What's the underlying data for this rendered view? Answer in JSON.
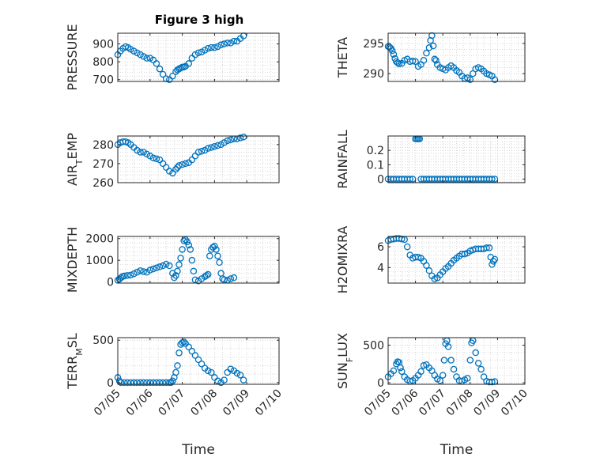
{
  "figure_title": "Figure 3 high",
  "colors": {
    "marker": "#0072BD",
    "axis": "#262626",
    "grid": "#c8c8c8"
  },
  "chart_data": [
    {
      "type": "scatter",
      "title": "Figure 3 high",
      "xlabel": "",
      "ylabel": "PRESSURE",
      "ylim": [
        690,
        960
      ],
      "yticks": [
        700,
        800,
        900
      ],
      "ytick_labels": [
        "700",
        "800",
        "900"
      ],
      "xticks": [
        0,
        1,
        2,
        3,
        4,
        5
      ],
      "xtick_labels": [
        "",
        "",
        "",
        "",
        "",
        ""
      ],
      "grid": true,
      "x": [
        0.0,
        0.08,
        0.16,
        0.24,
        0.32,
        0.4,
        0.5,
        0.6,
        0.7,
        0.8,
        0.9,
        1.0,
        1.1,
        1.2,
        1.3,
        1.4,
        1.5,
        1.6,
        1.7,
        1.8,
        1.85,
        1.9,
        1.95,
        2.0,
        2.05,
        2.1,
        2.2,
        2.3,
        2.4,
        2.5,
        2.6,
        2.7,
        2.8,
        2.9,
        3.0,
        3.1,
        3.2,
        3.3,
        3.4,
        3.5,
        3.6,
        3.7,
        3.8,
        3.9
      ],
      "y": [
        840,
        860,
        875,
        885,
        880,
        870,
        860,
        850,
        840,
        830,
        820,
        820,
        810,
        790,
        760,
        730,
        705,
        700,
        720,
        745,
        755,
        760,
        765,
        770,
        770,
        775,
        790,
        820,
        840,
        850,
        855,
        865,
        875,
        880,
        880,
        885,
        895,
        900,
        905,
        905,
        915,
        915,
        930,
        945
      ]
    },
    {
      "type": "scatter",
      "xlabel": "",
      "ylabel": "THETA",
      "ylim": [
        288.7,
        296.7
      ],
      "yticks": [
        290,
        295
      ],
      "ytick_labels": [
        "290",
        "295"
      ],
      "xticks": [
        0,
        1,
        2,
        3,
        4,
        5
      ],
      "xtick_labels": [
        "",
        "",
        "",
        "",
        "",
        ""
      ],
      "grid": true,
      "x": [
        0.0,
        0.05,
        0.1,
        0.15,
        0.2,
        0.25,
        0.3,
        0.35,
        0.4,
        0.5,
        0.6,
        0.7,
        0.8,
        0.9,
        1.0,
        1.1,
        1.2,
        1.3,
        1.4,
        1.5,
        1.55,
        1.6,
        1.65,
        1.7,
        1.75,
        1.8,
        1.9,
        2.0,
        2.1,
        2.2,
        2.3,
        2.4,
        2.5,
        2.6,
        2.7,
        2.8,
        2.9,
        3.0,
        3.1,
        3.2,
        3.3,
        3.4,
        3.5,
        3.6,
        3.7,
        3.8,
        3.9
      ],
      "y": [
        294.5,
        294.4,
        294.2,
        293.8,
        293.2,
        292.5,
        292.0,
        291.8,
        291.6,
        291.7,
        292.2,
        292.4,
        292.0,
        292.1,
        292.0,
        291.2,
        291.5,
        292.2,
        293.4,
        294.3,
        295.5,
        296.3,
        294.6,
        292.4,
        292.2,
        291.5,
        291.0,
        290.8,
        290.6,
        291.0,
        291.3,
        291.0,
        290.5,
        290.2,
        289.6,
        289.2,
        289.3,
        289.0,
        290.0,
        290.8,
        291.0,
        290.8,
        290.4,
        290.0,
        289.8,
        289.6,
        289.0
      ]
    },
    {
      "type": "scatter",
      "xlabel": "",
      "ylabel": "AIR_TEMP",
      "ylim": [
        260,
        284.5
      ],
      "yticks": [
        260,
        270,
        280
      ],
      "ytick_labels": [
        "260",
        "270",
        "280"
      ],
      "xticks": [
        0,
        1,
        2,
        3,
        4,
        5
      ],
      "xtick_labels": [
        "",
        "",
        "",
        "",
        "",
        ""
      ],
      "grid": true,
      "x": [
        0.0,
        0.08,
        0.16,
        0.24,
        0.32,
        0.4,
        0.5,
        0.6,
        0.7,
        0.8,
        0.9,
        1.0,
        1.1,
        1.2,
        1.3,
        1.4,
        1.5,
        1.6,
        1.7,
        1.8,
        1.85,
        1.9,
        2.0,
        2.1,
        2.2,
        2.3,
        2.4,
        2.5,
        2.6,
        2.7,
        2.8,
        2.9,
        3.0,
        3.1,
        3.2,
        3.3,
        3.4,
        3.5,
        3.6,
        3.7,
        3.8,
        3.9
      ],
      "y": [
        280,
        281,
        281.5,
        281.5,
        281,
        280,
        278.5,
        277,
        276,
        276,
        275,
        274,
        273,
        272.5,
        272,
        270,
        268,
        266,
        265,
        267,
        268,
        269,
        269.5,
        270,
        270.5,
        272,
        274,
        276,
        276.5,
        277,
        278,
        278.5,
        279,
        279.5,
        280,
        281,
        282,
        282.5,
        283,
        283,
        283.5,
        284
      ]
    },
    {
      "type": "scatter",
      "xlabel": "",
      "ylabel": "RAINFALL",
      "ylim": [
        -0.025,
        0.3
      ],
      "yticks": [
        0,
        0.1,
        0.2
      ],
      "ytick_labels": [
        "0",
        "0.1",
        "0.2"
      ],
      "xticks": [
        0,
        1,
        2,
        3,
        4,
        5
      ],
      "xtick_labels": [
        "",
        "",
        "",
        "",
        "",
        ""
      ],
      "grid": true,
      "x": [
        0.0,
        0.1,
        0.2,
        0.3,
        0.4,
        0.5,
        0.6,
        0.7,
        0.8,
        0.9,
        1.0,
        1.05,
        1.1,
        1.15,
        1.2,
        1.3,
        1.4,
        1.5,
        1.6,
        1.7,
        1.8,
        1.9,
        2.0,
        2.1,
        2.2,
        2.3,
        2.4,
        2.5,
        2.6,
        2.7,
        2.8,
        2.9,
        3.0,
        3.1,
        3.2,
        3.3,
        3.4,
        3.5,
        3.6,
        3.7,
        3.8,
        3.9
      ],
      "y": [
        0,
        0,
        0,
        0,
        0,
        0,
        0,
        0,
        0,
        0,
        0.28,
        0.28,
        0.28,
        0.28,
        0,
        0,
        0,
        0,
        0,
        0,
        0,
        0,
        0,
        0,
        0,
        0,
        0,
        0,
        0,
        0,
        0,
        0,
        0,
        0,
        0,
        0,
        0,
        0,
        0,
        0,
        0,
        0
      ]
    },
    {
      "type": "scatter",
      "xlabel": "",
      "ylabel": "MIXDEPTH",
      "ylim": [
        -50,
        2100
      ],
      "yticks": [
        0,
        1000,
        2000
      ],
      "ytick_labels": [
        "0",
        "1000",
        "2000"
      ],
      "xticks": [
        0,
        1,
        2,
        3,
        4,
        5
      ],
      "xtick_labels": [
        "",
        "",
        "",
        "",
        "",
        ""
      ],
      "grid": true,
      "x": [
        0.0,
        0.05,
        0.1,
        0.15,
        0.2,
        0.3,
        0.4,
        0.5,
        0.6,
        0.7,
        0.8,
        0.9,
        1.0,
        1.1,
        1.2,
        1.3,
        1.4,
        1.5,
        1.6,
        1.7,
        1.75,
        1.8,
        1.85,
        1.9,
        1.95,
        2.0,
        2.05,
        2.1,
        2.15,
        2.2,
        2.25,
        2.3,
        2.35,
        2.4,
        2.5,
        2.6,
        2.7,
        2.75,
        2.8,
        2.85,
        2.9,
        2.95,
        3.0,
        3.05,
        3.1,
        3.15,
        3.2,
        3.25,
        3.3,
        3.4,
        3.5,
        3.6
      ],
      "y": [
        80,
        130,
        200,
        250,
        280,
        300,
        320,
        380,
        450,
        520,
        480,
        450,
        550,
        600,
        650,
        700,
        750,
        820,
        750,
        400,
        200,
        300,
        500,
        800,
        1100,
        1500,
        1900,
        1950,
        1850,
        1700,
        1500,
        1000,
        500,
        100,
        50,
        150,
        250,
        300,
        350,
        1200,
        1500,
        1600,
        1650,
        1500,
        1200,
        900,
        400,
        150,
        100,
        80,
        150,
        200
      ]
    },
    {
      "type": "scatter",
      "xlabel": "",
      "ylabel": "H2OMIXRA",
      "ylim": [
        2.5,
        7.0
      ],
      "yticks": [
        4,
        6
      ],
      "ytick_labels": [
        "4",
        "6"
      ],
      "xticks": [
        0,
        1,
        2,
        3,
        4,
        5
      ],
      "xtick_labels": [
        "",
        "",
        "",
        "",
        "",
        ""
      ],
      "grid": true,
      "x": [
        0.0,
        0.1,
        0.2,
        0.3,
        0.4,
        0.5,
        0.6,
        0.7,
        0.8,
        0.9,
        1.0,
        1.1,
        1.2,
        1.3,
        1.4,
        1.5,
        1.6,
        1.7,
        1.8,
        1.9,
        2.0,
        2.1,
        2.2,
        2.3,
        2.4,
        2.5,
        2.6,
        2.7,
        2.8,
        2.9,
        3.0,
        3.1,
        3.2,
        3.3,
        3.4,
        3.5,
        3.6,
        3.7,
        3.75,
        3.8,
        3.85,
        3.9
      ],
      "y": [
        6.6,
        6.7,
        6.75,
        6.8,
        6.8,
        6.75,
        6.7,
        6.0,
        5.2,
        4.9,
        5.0,
        5.0,
        4.9,
        4.6,
        4.2,
        3.7,
        3.2,
        2.9,
        3.0,
        3.3,
        3.6,
        3.9,
        4.1,
        4.4,
        4.7,
        4.9,
        5.1,
        5.3,
        5.3,
        5.4,
        5.6,
        5.7,
        5.8,
        5.8,
        5.8,
        5.8,
        5.9,
        5.9,
        5.0,
        4.3,
        4.6,
        4.8
      ]
    },
    {
      "type": "scatter",
      "xlabel": "Time",
      "ylabel": "TERR_MSL",
      "ylim": [
        -20,
        530
      ],
      "yticks": [
        0,
        500
      ],
      "ytick_labels": [
        "0",
        "500"
      ],
      "xticks": [
        0,
        1,
        2,
        3,
        4,
        5
      ],
      "xtick_labels": [
        "07/05",
        "07/06",
        "07/07",
        "07/08",
        "07/09",
        "07/10"
      ],
      "grid": true,
      "x": [
        0.0,
        0.05,
        0.1,
        0.2,
        0.3,
        0.4,
        0.5,
        0.6,
        0.7,
        0.8,
        0.9,
        1.0,
        1.1,
        1.2,
        1.3,
        1.4,
        1.5,
        1.6,
        1.65,
        1.7,
        1.75,
        1.8,
        1.85,
        1.9,
        1.95,
        2.0,
        2.05,
        2.1,
        2.2,
        2.3,
        2.4,
        2.5,
        2.6,
        2.7,
        2.8,
        2.9,
        3.0,
        3.1,
        3.2,
        3.3,
        3.4,
        3.5,
        3.6,
        3.7,
        3.8,
        3.9
      ],
      "y": [
        60,
        20,
        0,
        0,
        0,
        0,
        0,
        0,
        0,
        0,
        0,
        0,
        0,
        0,
        0,
        0,
        0,
        0,
        0,
        20,
        60,
        120,
        200,
        350,
        450,
        470,
        480,
        460,
        420,
        370,
        320,
        270,
        220,
        170,
        140,
        120,
        60,
        20,
        0,
        30,
        120,
        160,
        140,
        110,
        90,
        30
      ]
    },
    {
      "type": "scatter",
      "xlabel": "Time",
      "ylabel": "SUN_FLUX",
      "ylim": [
        -20,
        600
      ],
      "yticks": [
        0,
        500
      ],
      "ytick_labels": [
        "0",
        "500"
      ],
      "xticks": [
        0,
        1,
        2,
        3,
        4,
        5
      ],
      "xtick_labels": [
        "07/05",
        "07/06",
        "07/07",
        "07/08",
        "07/09",
        "07/10"
      ],
      "grid": true,
      "x": [
        0.0,
        0.1,
        0.2,
        0.3,
        0.35,
        0.4,
        0.45,
        0.5,
        0.6,
        0.7,
        0.8,
        0.9,
        1.0,
        1.1,
        1.2,
        1.3,
        1.4,
        1.5,
        1.6,
        1.7,
        1.8,
        1.9,
        2.0,
        2.05,
        2.1,
        2.15,
        2.2,
        2.3,
        2.4,
        2.5,
        2.6,
        2.7,
        2.8,
        2.9,
        3.0,
        3.05,
        3.1,
        3.2,
        3.3,
        3.4,
        3.5,
        3.6,
        3.7,
        3.8,
        3.9
      ],
      "y": [
        80,
        120,
        160,
        250,
        280,
        270,
        200,
        150,
        80,
        40,
        20,
        30,
        60,
        100,
        150,
        230,
        240,
        200,
        160,
        100,
        50,
        30,
        100,
        300,
        520,
        560,
        480,
        300,
        180,
        80,
        30,
        20,
        40,
        60,
        300,
        530,
        560,
        400,
        260,
        180,
        80,
        20,
        10,
        10,
        15
      ]
    }
  ]
}
